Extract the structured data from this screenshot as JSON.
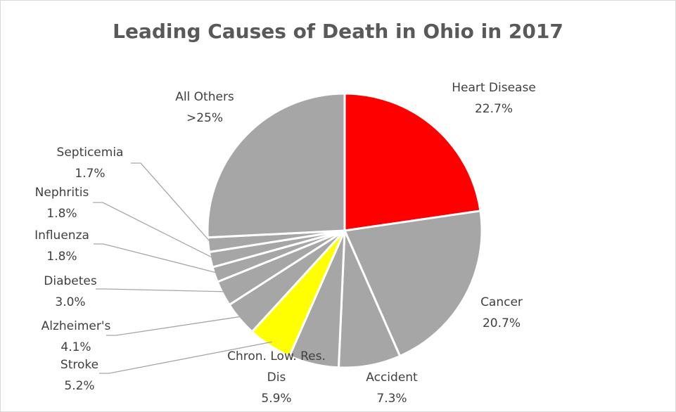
{
  "chart_data": {
    "type": "pie",
    "title": "Leading Causes of Death in Ohio in 2017",
    "slices": [
      {
        "label": "Heart Disease",
        "value_label": "22.7%",
        "value": 22.7,
        "color": "#ff0000"
      },
      {
        "label": "Cancer",
        "value_label": "20.7%",
        "value": 20.7,
        "color": "#a6a6a6"
      },
      {
        "label": "Accident",
        "value_label": "7.3%",
        "value": 7.3,
        "color": "#a6a6a6"
      },
      {
        "label": "Chron. Low. Res. Dis",
        "value_label": "5.9%",
        "value": 5.9,
        "color": "#a6a6a6"
      },
      {
        "label": "Stroke",
        "value_label": "5.2%",
        "value": 5.2,
        "color": "#ffff00"
      },
      {
        "label": "Alzheimer's",
        "value_label": "4.1%",
        "value": 4.1,
        "color": "#a6a6a6"
      },
      {
        "label": "Diabetes",
        "value_label": "3.0%",
        "value": 3.0,
        "color": "#a6a6a6"
      },
      {
        "label": "Influenza",
        "value_label": "1.8%",
        "value": 1.8,
        "color": "#a6a6a6"
      },
      {
        "label": "Nephritis",
        "value_label": "1.8%",
        "value": 1.8,
        "color": "#a6a6a6"
      },
      {
        "label": "Septicemia",
        "value_label": "1.7%",
        "value": 1.7,
        "color": "#a6a6a6"
      },
      {
        "label": "All Others",
        "value_label": ">25%",
        "value": 25.8,
        "color": "#a6a6a6"
      }
    ],
    "legend": "none",
    "slice_border_color": "#ffffff"
  }
}
